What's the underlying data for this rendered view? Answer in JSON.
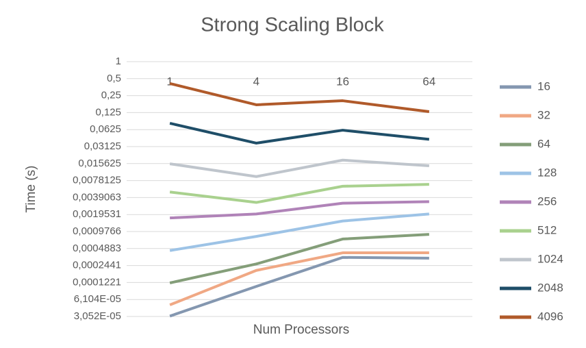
{
  "chart_data": {
    "type": "line",
    "title": "Strong Scaling Block",
    "x_label": "Num Processors",
    "y_label": "Time (s)",
    "yscale": "log",
    "grid": true,
    "legend": "right",
    "categories": [
      "1",
      "4",
      "16",
      "64"
    ],
    "ylim": [
      3.0517578125e-05,
      1
    ],
    "yticks": [
      1,
      {
        "value": 0.5,
        "label": "0,5"
      },
      {
        "value": 0.25,
        "label": "0,25"
      },
      {
        "value": 0.125,
        "label": "0,125"
      },
      {
        "value": 0.0625,
        "label": "0,0625"
      },
      {
        "value": 0.03125,
        "label": "0,03125"
      },
      {
        "value": 0.015625,
        "label": "0,015625"
      },
      {
        "value": 0.0078125,
        "label": "0,0078125"
      },
      {
        "value": 0.00390625,
        "label": "0,0039063"
      },
      {
        "value": 0.001953125,
        "label": "0,0019531"
      },
      {
        "value": 0.0009765625,
        "label": "0,0009766"
      },
      {
        "value": 0.00048828125,
        "label": "0,0004883"
      },
      {
        "value": 0.000244140625,
        "label": "0,0002441"
      },
      {
        "value": 0.0001220703125,
        "label": "0,0001221"
      },
      {
        "value": 6.103515625e-05,
        "label": "6,104E-05"
      },
      {
        "value": 3.0517578125e-05,
        "label": "3,052E-05"
      }
    ],
    "series": [
      {
        "name": "16",
        "color": "#8497b0",
        "values": [
          3.1e-05,
          0.000104,
          0.00034,
          0.00033
        ]
      },
      {
        "name": "32",
        "color": "#f0a884",
        "values": [
          4.9e-05,
          0.0002,
          0.00041,
          0.00041
        ]
      },
      {
        "name": "64",
        "color": "#849e79",
        "values": [
          0.00012,
          0.00026,
          0.00072,
          0.00087
        ]
      },
      {
        "name": "128",
        "color": "#9dc3e6",
        "values": [
          0.00045,
          0.0008,
          0.0015,
          0.002
        ]
      },
      {
        "name": "256",
        "color": "#b083b8",
        "values": [
          0.0017,
          0.002,
          0.0031,
          0.0033
        ]
      },
      {
        "name": "512",
        "color": "#a9d18e",
        "values": [
          0.0049,
          0.0032,
          0.0062,
          0.0067
        ]
      },
      {
        "name": "1024",
        "color": "#bfc5cc",
        "values": [
          0.0155,
          0.0092,
          0.018,
          0.0143
        ]
      },
      {
        "name": "2048",
        "color": "#1f4e68",
        "values": [
          0.081,
          0.036,
          0.061,
          0.042
        ]
      },
      {
        "name": "4096",
        "color": "#b05a2a",
        "values": [
          0.41,
          0.172,
          0.203,
          0.13
        ]
      }
    ]
  }
}
